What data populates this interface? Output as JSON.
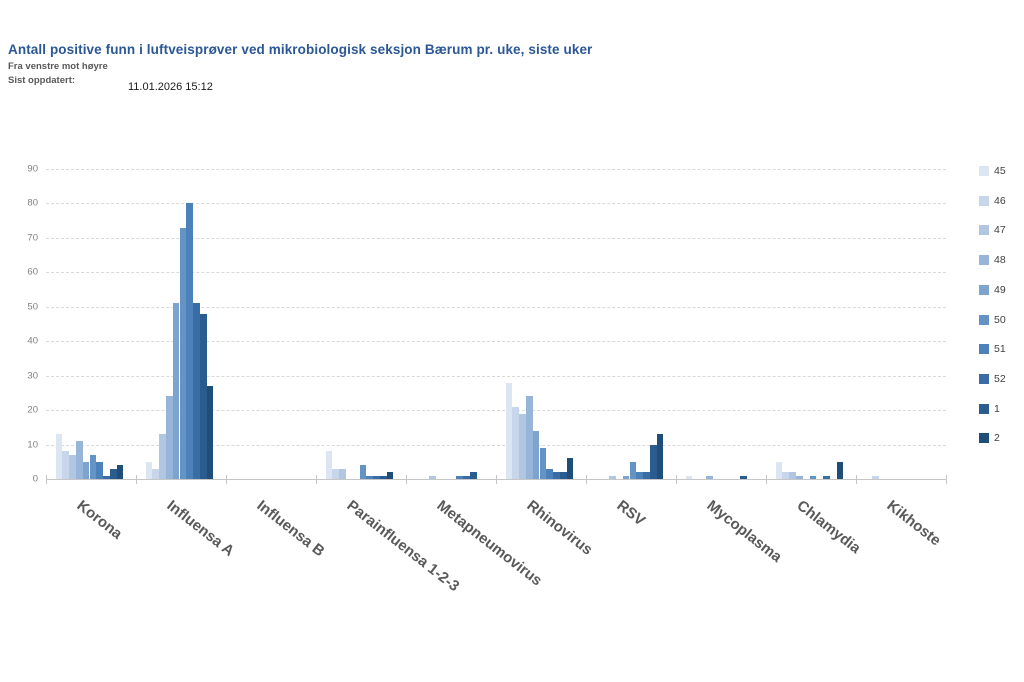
{
  "header": {
    "title": "Antall positive funn i luftveisprøver ved mikrobiologisk seksjon Bærum pr. uke, siste uker",
    "direction_note": "Fra venstre mot høyre",
    "updated_label": "Sist oppdatert:",
    "updated_value": "11.01.2026 15:12"
  },
  "chart_data": {
    "type": "bar",
    "title": "Antall positive funn i luftveisprøver ved mikrobiologisk seksjon Bærum pr. uke, siste uker",
    "categories": [
      "Korona",
      "Influensa A",
      "Influensa B",
      "Parainfluensa 1-2-3",
      "Metapneumovirus",
      "Rhinovirus",
      "RSV",
      "Mycoplasma",
      "Chlamydia",
      "Kikhoste"
    ],
    "series": [
      {
        "name": "45",
        "color": "#dce6f2",
        "values": [
          13,
          5,
          0,
          8,
          0,
          28,
          0,
          1,
          5,
          0
        ]
      },
      {
        "name": "46",
        "color": "#c7d6ea",
        "values": [
          8,
          3,
          0,
          3,
          0,
          21,
          0,
          0,
          2,
          1
        ]
      },
      {
        "name": "47",
        "color": "#b0c6e1",
        "values": [
          7,
          13,
          0,
          3,
          1,
          19,
          1,
          0,
          2,
          0
        ]
      },
      {
        "name": "48",
        "color": "#97b5d8",
        "values": [
          11,
          24,
          0,
          0,
          0,
          24,
          0,
          1,
          1,
          0
        ]
      },
      {
        "name": "49",
        "color": "#7da4cf",
        "values": [
          5,
          51,
          0,
          0,
          0,
          14,
          1,
          0,
          0,
          0
        ]
      },
      {
        "name": "50",
        "color": "#6493c6",
        "values": [
          7,
          73,
          0,
          4,
          0,
          9,
          5,
          0,
          1,
          0
        ]
      },
      {
        "name": "51",
        "color": "#4d81ba",
        "values": [
          5,
          80,
          0,
          1,
          1,
          3,
          2,
          0,
          0,
          0
        ]
      },
      {
        "name": "52",
        "color": "#3a6da6",
        "values": [
          1,
          51,
          0,
          1,
          1,
          2,
          2,
          0,
          1,
          0
        ]
      },
      {
        "name": "1",
        "color": "#2b5c90",
        "values": [
          3,
          48,
          0,
          1,
          2,
          2,
          10,
          1,
          0,
          0
        ]
      },
      {
        "name": "2",
        "color": "#1f4e79",
        "values": [
          4,
          27,
          0,
          2,
          0,
          6,
          13,
          0,
          5,
          0
        ]
      }
    ],
    "ylim": [
      0,
      90
    ],
    "yticks": [
      0,
      10,
      20,
      30,
      40,
      50,
      60,
      70,
      80,
      90
    ],
    "grid": true,
    "legend_position": "right",
    "xlabel": "",
    "ylabel": ""
  }
}
